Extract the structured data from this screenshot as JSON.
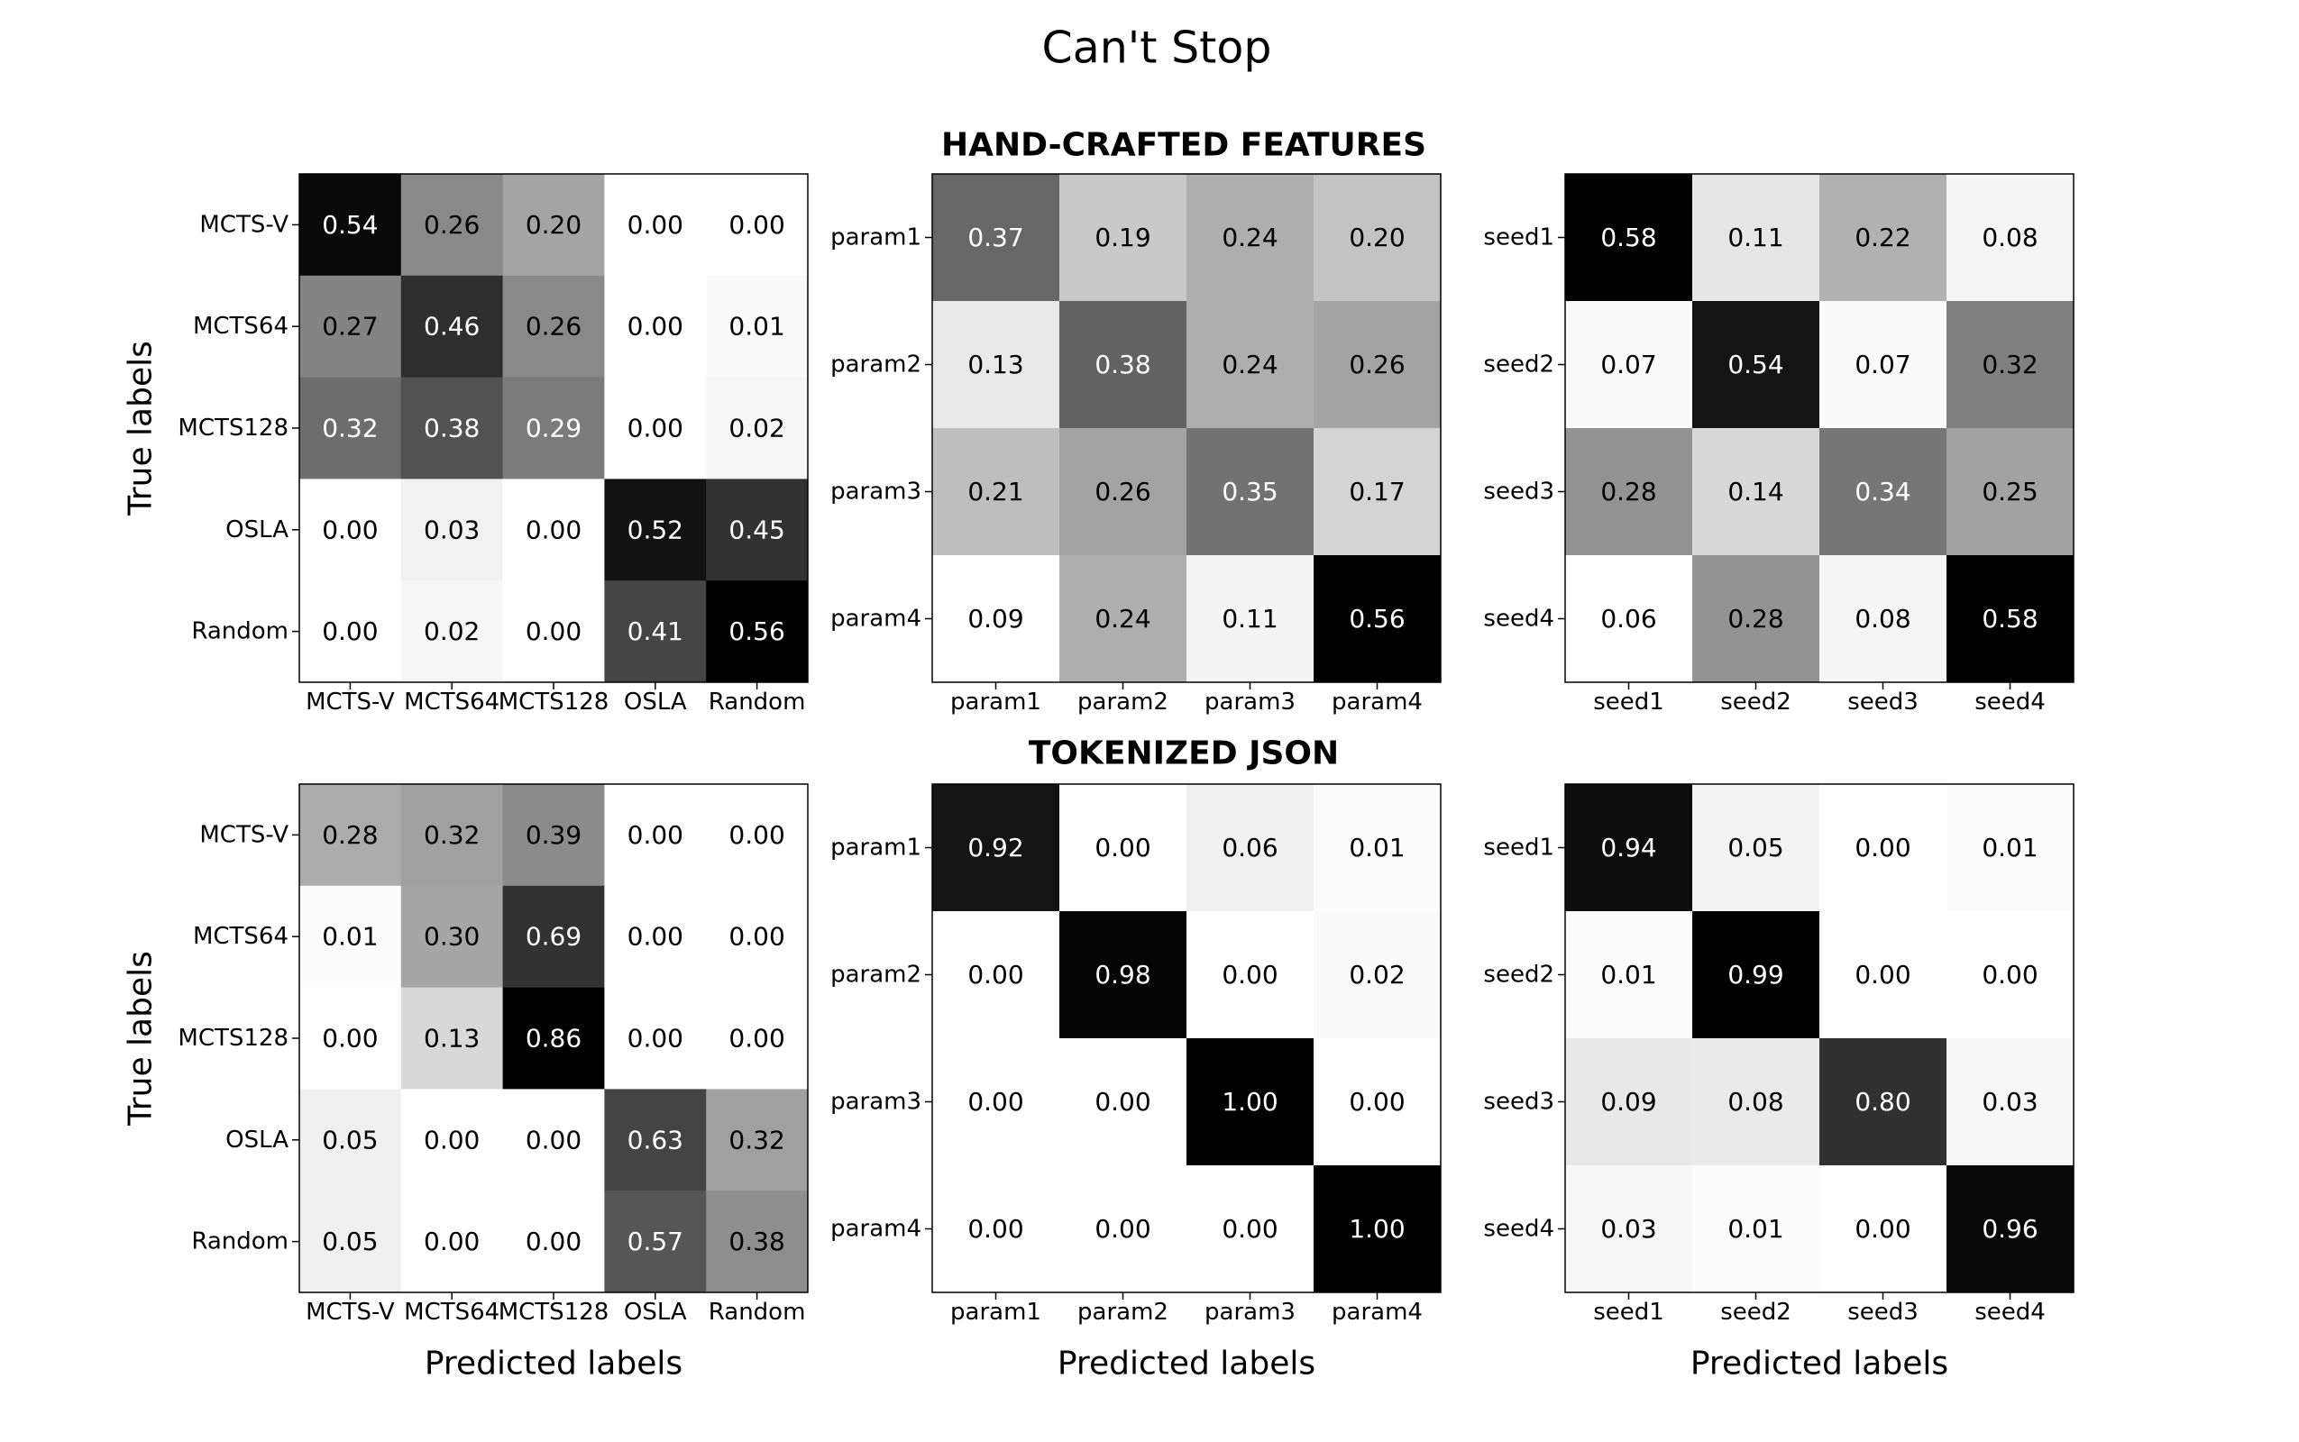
{
  "title": "Can't Stop",
  "row_titles": [
    "HAND-CRAFTED FEATURES",
    "TOKENIZED JSON"
  ],
  "ylabel": "True labels",
  "xlabel": "Predicted labels",
  "colors": {
    "colormap_low": "#ffffff",
    "colormap_high": "#000000",
    "text_dark": "#000000",
    "text_light": "#ffffff",
    "frame": "#000000"
  },
  "chart_data": [
    {
      "type": "heatmap",
      "row": "HAND-CRAFTED FEATURES",
      "labels": [
        "MCTS-V",
        "MCTS64",
        "MCTS128",
        "OSLA",
        "Random"
      ],
      "values": [
        [
          0.54,
          0.26,
          0.2,
          0.0,
          0.0
        ],
        [
          0.27,
          0.46,
          0.26,
          0.0,
          0.01
        ],
        [
          0.32,
          0.38,
          0.29,
          0.0,
          0.02
        ],
        [
          0.0,
          0.03,
          0.0,
          0.52,
          0.45
        ],
        [
          0.0,
          0.02,
          0.0,
          0.41,
          0.56
        ]
      ],
      "ylabel": "True labels"
    },
    {
      "type": "heatmap",
      "row": "HAND-CRAFTED FEATURES",
      "labels": [
        "param1",
        "param2",
        "param3",
        "param4"
      ],
      "values": [
        [
          0.37,
          0.19,
          0.24,
          0.2
        ],
        [
          0.13,
          0.38,
          0.24,
          0.26
        ],
        [
          0.21,
          0.26,
          0.35,
          0.17
        ],
        [
          0.09,
          0.24,
          0.11,
          0.56
        ]
      ]
    },
    {
      "type": "heatmap",
      "row": "HAND-CRAFTED FEATURES",
      "labels": [
        "seed1",
        "seed2",
        "seed3",
        "seed4"
      ],
      "values": [
        [
          0.58,
          0.11,
          0.22,
          0.08
        ],
        [
          0.07,
          0.54,
          0.07,
          0.32
        ],
        [
          0.28,
          0.14,
          0.34,
          0.25
        ],
        [
          0.06,
          0.28,
          0.08,
          0.58
        ]
      ]
    },
    {
      "type": "heatmap",
      "row": "TOKENIZED JSON",
      "labels": [
        "MCTS-V",
        "MCTS64",
        "MCTS128",
        "OSLA",
        "Random"
      ],
      "values": [
        [
          0.28,
          0.32,
          0.39,
          0.0,
          0.0
        ],
        [
          0.01,
          0.3,
          0.69,
          0.0,
          0.0
        ],
        [
          0.0,
          0.13,
          0.86,
          0.0,
          0.0
        ],
        [
          0.05,
          0.0,
          0.0,
          0.63,
          0.32
        ],
        [
          0.05,
          0.0,
          0.0,
          0.57,
          0.38
        ]
      ],
      "ylabel": "True labels",
      "xlabel": "Predicted labels"
    },
    {
      "type": "heatmap",
      "row": "TOKENIZED JSON",
      "labels": [
        "param1",
        "param2",
        "param3",
        "param4"
      ],
      "values": [
        [
          0.92,
          0.0,
          0.06,
          0.01
        ],
        [
          0.0,
          0.98,
          0.0,
          0.02
        ],
        [
          0.0,
          0.0,
          1.0,
          0.0
        ],
        [
          0.0,
          0.0,
          0.0,
          1.0
        ]
      ],
      "xlabel": "Predicted labels"
    },
    {
      "type": "heatmap",
      "row": "TOKENIZED JSON",
      "labels": [
        "seed1",
        "seed2",
        "seed3",
        "seed4"
      ],
      "values": [
        [
          0.94,
          0.05,
          0.0,
          0.01
        ],
        [
          0.01,
          0.99,
          0.0,
          0.0
        ],
        [
          0.09,
          0.08,
          0.8,
          0.03
        ],
        [
          0.03,
          0.01,
          0.0,
          0.96
        ]
      ],
      "xlabel": "Predicted labels"
    }
  ]
}
